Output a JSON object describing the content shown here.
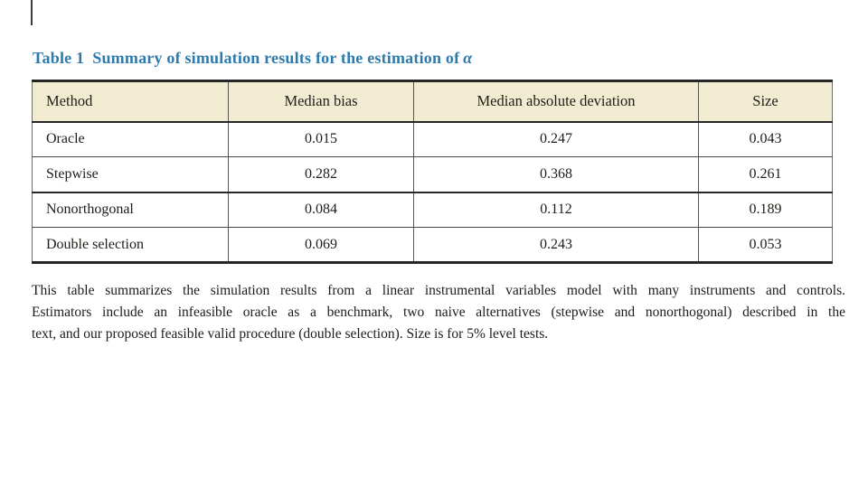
{
  "page": {
    "background_color": "#ffffff",
    "accent_title_color": "#2d7aad",
    "header_fill_color": "#f1ecd1"
  },
  "title": {
    "label": "Table 1",
    "text": "Summary of simulation results for the estimation of",
    "symbol": "α"
  },
  "table": {
    "columns": [
      "Method",
      "Median bias",
      "Median absolute deviation",
      "Size"
    ],
    "rows": [
      [
        "Oracle",
        "0.015",
        "0.247",
        "0.043"
      ],
      [
        "Stepwise",
        "0.282",
        "0.368",
        "0.261"
      ],
      [
        "Nonorthogonal",
        "0.084",
        "0.112",
        "0.189"
      ],
      [
        "Double selection",
        "0.069",
        "0.243",
        "0.053"
      ]
    ]
  },
  "footnote": {
    "lines": [
      "This table summarizes the simulation results from a linear instrumental variables model with many instruments and controls.",
      "Estimators include an infeasible oracle as a benchmark, two naive alternatives (stepwise and nonorthogonal) described in the",
      "text, and our proposed feasible valid procedure (double selection). Size is for 5% level tests."
    ]
  }
}
